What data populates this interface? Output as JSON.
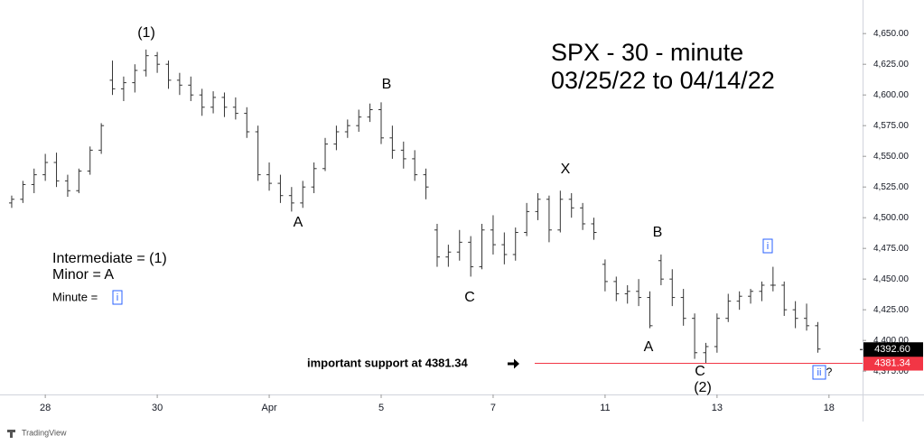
{
  "chart_data": {
    "type": "ohlc",
    "title": "SPX - 30 - minute",
    "subtitle": "03/25/22 to 04/14/22",
    "color": "#333333",
    "x": [
      -0.6,
      -0.4,
      -0.2,
      0,
      0.2,
      0.4,
      0.6,
      0.8,
      1,
      1.2,
      1.4,
      1.6,
      1.8,
      2,
      2.2,
      2.4,
      2.6,
      2.8,
      3,
      3.2,
      3.4,
      3.6,
      3.8,
      4,
      4.2,
      4.4,
      4.6,
      4.8,
      5,
      5.2,
      5.4,
      5.6,
      5.8,
      6,
      6.2,
      6.4,
      6.6,
      6.8,
      7,
      7.2,
      7.4,
      7.6,
      7.8,
      8,
      8.2,
      8.4,
      8.6,
      8.8,
      9,
      9.2,
      9.4,
      9.6,
      9.8,
      10,
      10.2,
      10.4,
      10.6,
      10.8,
      11,
      11.2,
      11.4,
      11.6,
      11.8,
      12,
      12.2,
      12.4,
      12.6,
      12.8,
      13,
      13.2,
      13.4,
      13.6,
      13.8
    ],
    "open": [
      4512,
      4515,
      4527,
      4535,
      4545,
      4530,
      4522,
      4538,
      4555,
      4612,
      4605,
      4610,
      4620,
      4632,
      4625,
      4612,
      4608,
      4600,
      4590,
      4598,
      4590,
      4585,
      4570,
      4535,
      4528,
      4518,
      4512,
      4525,
      4540,
      4560,
      4570,
      4575,
      4582,
      4588,
      4565,
      4555,
      4548,
      4535,
      4490,
      4468,
      4472,
      4480,
      4460,
      4490,
      4478,
      4470,
      4488,
      4505,
      4515,
      4490,
      4515,
      4508,
      4495,
      4462,
      4448,
      4438,
      4440,
      4435,
      4465,
      4450,
      4435,
      4418,
      4390,
      4395,
      4418,
      4432,
      4436,
      4440,
      4445,
      4445,
      4425,
      4418,
      4412
    ],
    "high": [
      4518,
      4530,
      4540,
      4552,
      4553,
      4535,
      4540,
      4558,
      4577,
      4628,
      4615,
      4625,
      4637,
      4635,
      4628,
      4618,
      4615,
      4605,
      4603,
      4602,
      4598,
      4590,
      4575,
      4545,
      4535,
      4525,
      4530,
      4545,
      4565,
      4575,
      4580,
      4588,
      4593,
      4594,
      4575,
      4562,
      4555,
      4540,
      4495,
      4478,
      4490,
      4485,
      4495,
      4502,
      4488,
      4492,
      4512,
      4520,
      4518,
      4522,
      4520,
      4512,
      4500,
      4466,
      4452,
      4445,
      4450,
      4440,
      4470,
      4458,
      4442,
      4422,
      4398,
      4422,
      4438,
      4440,
      4442,
      4448,
      4460,
      4448,
      4432,
      4430,
      4415
    ],
    "low": [
      4508,
      4512,
      4520,
      4530,
      4525,
      4517,
      4520,
      4535,
      4552,
      4600,
      4595,
      4602,
      4615,
      4618,
      4605,
      4600,
      4595,
      4583,
      4585,
      4582,
      4580,
      4565,
      4530,
      4522,
      4512,
      4505,
      4508,
      4520,
      4538,
      4555,
      4565,
      4570,
      4578,
      4560,
      4548,
      4540,
      4530,
      4515,
      4460,
      4460,
      4465,
      4452,
      4458,
      4470,
      4462,
      4465,
      4485,
      4498,
      4480,
      4488,
      4500,
      4490,
      4482,
      4440,
      4432,
      4430,
      4428,
      4410,
      4445,
      4428,
      4412,
      4385,
      4381,
      4390,
      4415,
      4425,
      4430,
      4432,
      4440,
      4420,
      4410,
      4408,
      4390
    ],
    "close": [
      4515,
      4527,
      4535,
      4545,
      4530,
      4522,
      4538,
      4555,
      4575,
      4605,
      4610,
      4620,
      4632,
      4625,
      4612,
      4608,
      4600,
      4590,
      4598,
      4590,
      4585,
      4570,
      4535,
      4528,
      4518,
      4512,
      4525,
      4540,
      4560,
      4570,
      4575,
      4582,
      4588,
      4565,
      4555,
      4548,
      4535,
      4525,
      4468,
      4472,
      4480,
      4460,
      4490,
      4478,
      4470,
      4488,
      4505,
      4515,
      4490,
      4515,
      4508,
      4495,
      4488,
      4448,
      4438,
      4440,
      4435,
      4412,
      4450,
      4435,
      4418,
      4390,
      4395,
      4418,
      4432,
      4436,
      4440,
      4445,
      4445,
      4425,
      4418,
      4412,
      4393
    ],
    "xlim": [
      -0.68,
      14.6
    ],
    "xticks": [
      {
        "value": 0,
        "label": "28"
      },
      {
        "value": 2,
        "label": "30"
      },
      {
        "value": 4,
        "label": "Apr"
      },
      {
        "value": 6,
        "label": "5"
      },
      {
        "value": 8,
        "label": "7"
      },
      {
        "value": 10,
        "label": "11"
      },
      {
        "value": 12,
        "label": "13"
      },
      {
        "value": 14,
        "label": "18"
      }
    ],
    "ylim": [
      4356,
      4670
    ],
    "yticks": [
      {
        "value": 4375,
        "label": "4,375.00"
      },
      {
        "value": 4400,
        "label": "4,400.00"
      },
      {
        "value": 4425,
        "label": "4,425.00"
      },
      {
        "value": 4450,
        "label": "4,450.00"
      },
      {
        "value": 4475,
        "label": "4,475.00"
      },
      {
        "value": 4500,
        "label": "4,500.00"
      },
      {
        "value": 4525,
        "label": "4,525.00"
      },
      {
        "value": 4550,
        "label": "4,550.00"
      },
      {
        "value": 4575,
        "label": "4,575.00"
      },
      {
        "value": 4600,
        "label": "4,600.00"
      },
      {
        "value": 4625,
        "label": "4,625.00"
      },
      {
        "value": 4650,
        "label": "4,650.00"
      }
    ],
    "support": {
      "value": 4381.34,
      "label": "4381.34",
      "color": "#f23645"
    },
    "last_price": {
      "value": 4392.6,
      "label": "4392.60"
    },
    "annotations": [
      "(1)",
      "B",
      "A",
      "X",
      "C",
      "B",
      "A",
      "C",
      "(2)",
      "i",
      "ii",
      "?",
      "Intermediate = (1)",
      "Minor = A",
      "Minute =",
      "i",
      "important support at 4381.34"
    ],
    "brand": "TradingView"
  }
}
